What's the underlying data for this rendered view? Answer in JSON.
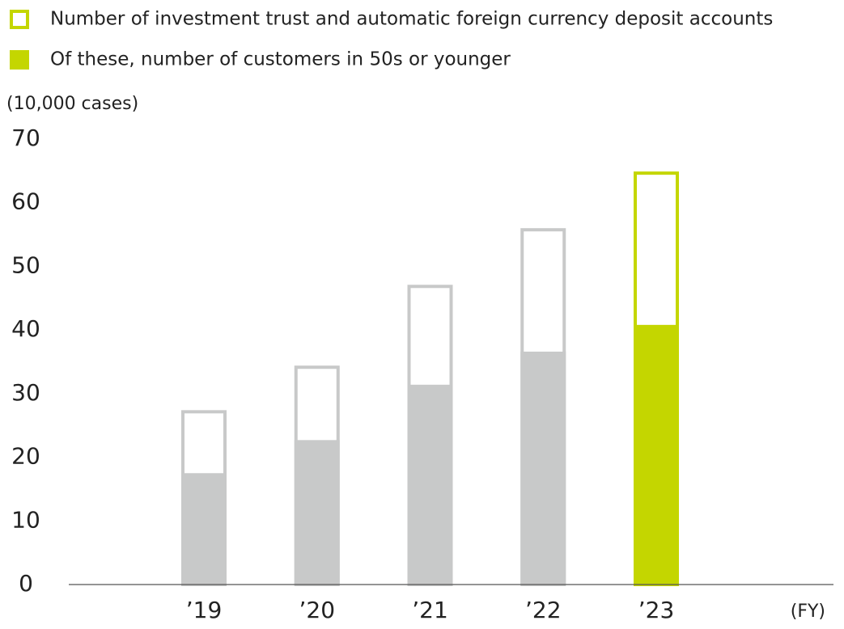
{
  "chart_data": {
    "type": "bar",
    "y_axis_label": "(10,000 cases)",
    "x_axis_label": "(FY)",
    "categories": [
      "’19",
      "’20",
      "’21",
      "’22",
      "’23"
    ],
    "series": [
      {
        "name": "Number of investment trust and automatic foreign currency deposit accounts",
        "color": "#c4d600",
        "style": "outline",
        "values": [
          27.4,
          34.4,
          47.1,
          56.0,
          64.9
        ]
      },
      {
        "name": "Of these, number of customers in 50s or younger",
        "color": "#c4d600",
        "style": "filled",
        "values": [
          17.5,
          22.7,
          31.4,
          36.6,
          40.8
        ]
      }
    ],
    "bar_colors": [
      "#c8c9c9",
      "#c8c9c9",
      "#c8c9c9",
      "#c8c9c9",
      "#c4d600"
    ],
    "ylim": [
      0,
      70
    ],
    "yticks": [
      0,
      10,
      20,
      30,
      40,
      50,
      60,
      70
    ],
    "grid": false
  }
}
